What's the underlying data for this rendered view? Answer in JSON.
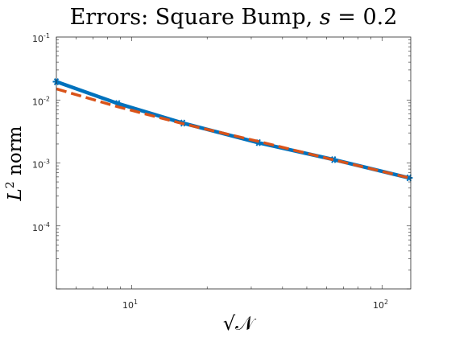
{
  "chart_data": {
    "type": "line",
    "title": "Errors: Square Bump, s = 0.2",
    "title_parts": {
      "main": "Errors: Square Bump, ",
      "var": "s",
      "rest": " = 0.2"
    },
    "xlabel": "√𝒩",
    "ylabel": "L² norm",
    "ylabel_parts": {
      "base": "L",
      "exp": "2",
      "rest": " norm"
    },
    "x_scale": "log",
    "y_scale": "log",
    "xlim": [
      5,
      130
    ],
    "ylim": [
      1e-05,
      0.1
    ],
    "x_ticks": [
      {
        "value": 10,
        "base": "10",
        "exp": "1"
      },
      {
        "value": 100,
        "base": "10",
        "exp": "2"
      }
    ],
    "y_ticks": [
      {
        "value": 0.1,
        "base": "10",
        "exp": "-1"
      },
      {
        "value": 0.01,
        "base": "10",
        "exp": "-2"
      },
      {
        "value": 0.001,
        "base": "10",
        "exp": "-3"
      },
      {
        "value": 0.0001,
        "base": "10",
        "exp": "-4"
      }
    ],
    "grid": false,
    "legend": "none",
    "series": [
      {
        "color": "#0072BD",
        "style": "solid",
        "marker": "star",
        "x": [
          5,
          8.8,
          16,
          32,
          64,
          128
        ],
        "y": [
          0.0195,
          0.0088,
          0.0043,
          0.0021,
          0.00113,
          0.00058
        ]
      },
      {
        "color": "#D95319",
        "style": "dashed",
        "marker": "none",
        "x": [
          5,
          8.8,
          16,
          32,
          64,
          128
        ],
        "y": [
          0.015,
          0.0078,
          0.0042,
          0.0022,
          0.00112,
          0.00058
        ]
      }
    ]
  }
}
